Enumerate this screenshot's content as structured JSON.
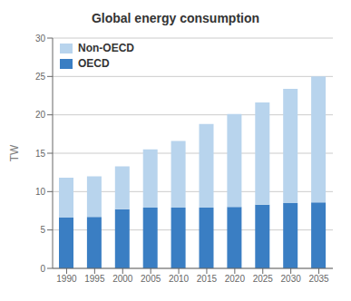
{
  "chart_data": {
    "type": "bar",
    "stacked": true,
    "title": "Global energy consumption",
    "ylabel": "TW",
    "categories": [
      "1990",
      "1995",
      "2000",
      "2005",
      "2010",
      "2015",
      "2020",
      "2025",
      "2030",
      "2035"
    ],
    "series": [
      {
        "name": "OECD",
        "color": "#3A7EC3",
        "values": [
          6.6,
          6.7,
          7.7,
          7.9,
          7.9,
          7.9,
          8.0,
          8.3,
          8.5,
          8.6
        ]
      },
      {
        "name": "Non-OECD",
        "color": "#B8D4ED",
        "values": [
          5.2,
          5.3,
          5.6,
          7.6,
          8.7,
          10.9,
          12.1,
          13.3,
          14.9,
          16.4
        ]
      }
    ],
    "ylim": [
      0,
      30
    ],
    "yticks": [
      0,
      5,
      10,
      15,
      20,
      25,
      30
    ],
    "grid": true,
    "legend": "upper left"
  }
}
